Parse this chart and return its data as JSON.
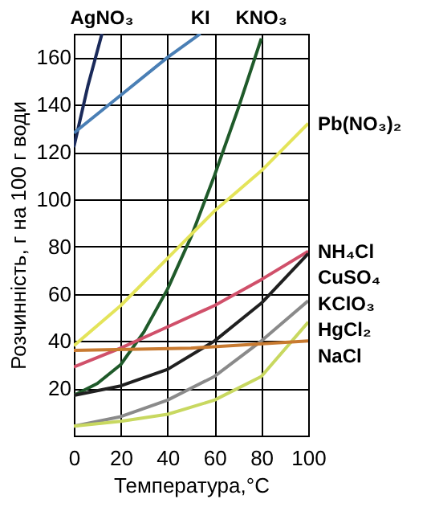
{
  "chart_data": {
    "type": "line",
    "xlabel": "Температура,°C",
    "ylabel": "Розчинність, г на 100 г води",
    "xlim": [
      0,
      100
    ],
    "xticks": [
      0,
      20,
      40,
      60,
      80,
      100
    ],
    "ylim": [
      0,
      170
    ],
    "yticks": [
      20,
      40,
      60,
      80,
      100,
      120,
      140,
      160
    ],
    "grid": true,
    "legend": false,
    "marker": "none",
    "line_style": "solid",
    "series": [
      {
        "name": "AgNO₃",
        "color": "#1a2a5a",
        "x": [
          0,
          6,
          12
        ],
        "values": [
          122,
          148,
          170
        ]
      },
      {
        "name": "KI",
        "color": "#4a7fb5",
        "x": [
          0,
          20,
          40,
          54
        ],
        "values": [
          128,
          144,
          160,
          170
        ]
      },
      {
        "name": "KNO₃",
        "color": "#1f5a2a",
        "x": [
          0,
          10,
          20,
          30,
          40,
          50,
          60,
          70,
          80
        ],
        "values": [
          17,
          22,
          30,
          44,
          62,
          84,
          110,
          138,
          168
        ]
      },
      {
        "name": "Pb(NO₃)₂",
        "color": "#e4e45a",
        "x": [
          0,
          20,
          40,
          60,
          80,
          100
        ],
        "values": [
          38,
          55,
          75,
          95,
          112,
          132
        ]
      },
      {
        "name": "NH₄Cl",
        "color": "#d0506a",
        "x": [
          0,
          20,
          40,
          60,
          80,
          100
        ],
        "values": [
          29,
          37,
          46,
          55,
          66,
          78
        ]
      },
      {
        "name": "CuSO₄",
        "color": "#202020",
        "x": [
          0,
          20,
          40,
          60,
          80,
          100
        ],
        "values": [
          17,
          21,
          28,
          40,
          56,
          77
        ]
      },
      {
        "name": "KClO₃",
        "color": "#8a8a8a",
        "x": [
          0,
          20,
          40,
          60,
          80,
          100
        ],
        "values": [
          4,
          8,
          15,
          25,
          40,
          57
        ]
      },
      {
        "name": "HgCl₂",
        "color": "#c8d860",
        "x": [
          0,
          20,
          40,
          60,
          80,
          100
        ],
        "values": [
          4,
          6,
          9,
          15,
          25,
          48
        ]
      },
      {
        "name": "NaCl",
        "color": "#c87a30",
        "x": [
          0,
          50,
          100
        ],
        "values": [
          36,
          37,
          40
        ]
      }
    ]
  }
}
